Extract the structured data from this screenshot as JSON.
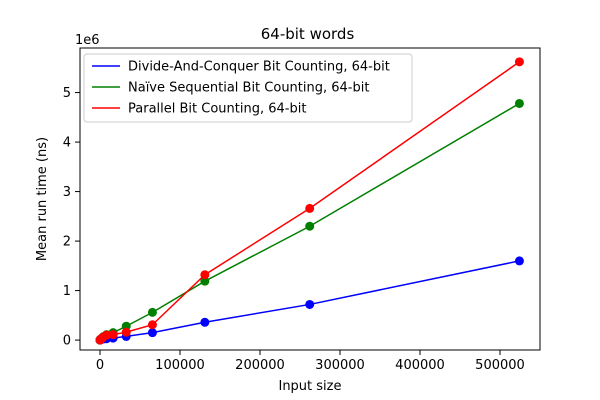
{
  "chart_data": {
    "type": "line",
    "title": "64-bit words",
    "xlabel": "Input size",
    "ylabel": "Mean run time (ns)",
    "y_offset_text": "1e6",
    "xlim": [
      -25000,
      550000
    ],
    "ylim": [
      -200000,
      5900000
    ],
    "x_ticks": [
      0,
      100000,
      200000,
      300000,
      400000,
      500000
    ],
    "x_tick_labels": [
      "0",
      "100000",
      "200000",
      "300000",
      "400000",
      "500000"
    ],
    "y_ticks": [
      0,
      1000000,
      2000000,
      3000000,
      4000000,
      5000000
    ],
    "y_tick_labels": [
      "0",
      "1",
      "2",
      "3",
      "4",
      "5"
    ],
    "grid": false,
    "legend_position": "top-left",
    "x": [
      0,
      128,
      256,
      512,
      1024,
      2048,
      4096,
      8192,
      16384,
      32768,
      65536,
      131072,
      262144,
      524288
    ],
    "series": [
      {
        "name": "Divide-And-Conquer Bit Counting, 64-bit",
        "color": "#0000ff",
        "values": [
          0,
          2000,
          5000,
          8000,
          11000,
          16000,
          22000,
          28000,
          40000,
          75000,
          150000,
          360000,
          720000,
          1600000
        ]
      },
      {
        "name": "Naïve Sequential Bit Counting, 64-bit",
        "color": "#008000",
        "values": [
          0,
          3000,
          6000,
          11000,
          20000,
          37000,
          70000,
          110000,
          150000,
          280000,
          560000,
          1190000,
          2300000,
          4780000
        ]
      },
      {
        "name": "Parallel Bit Counting, 64-bit",
        "color": "#ff0000",
        "values": [
          0,
          3000,
          6000,
          10000,
          18000,
          34000,
          62000,
          100000,
          110000,
          160000,
          310000,
          1320000,
          2660000,
          5620000
        ]
      }
    ]
  }
}
